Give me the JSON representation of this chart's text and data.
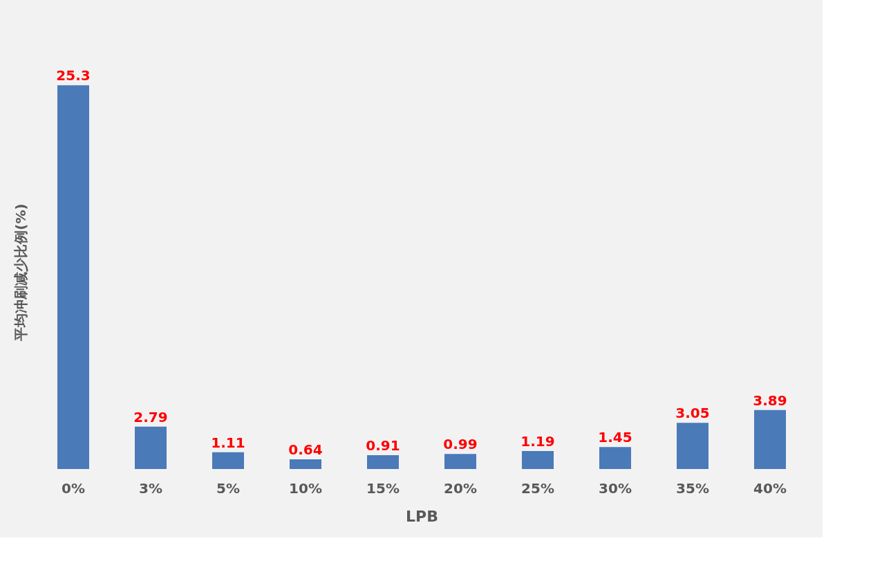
{
  "chart_data": {
    "type": "bar",
    "xlabel": "LPB",
    "ylabel": "平均冲刷减少比例(%)",
    "categories": [
      "0%",
      "3%",
      "5%",
      "10%",
      "15%",
      "20%",
      "25%",
      "30%",
      "35%",
      "40%"
    ],
    "values": [
      25.3,
      2.79,
      1.11,
      0.64,
      0.91,
      0.99,
      1.19,
      1.45,
      3.05,
      3.89
    ],
    "color": "#4a7ab8",
    "data_labels": true,
    "grid": false
  }
}
